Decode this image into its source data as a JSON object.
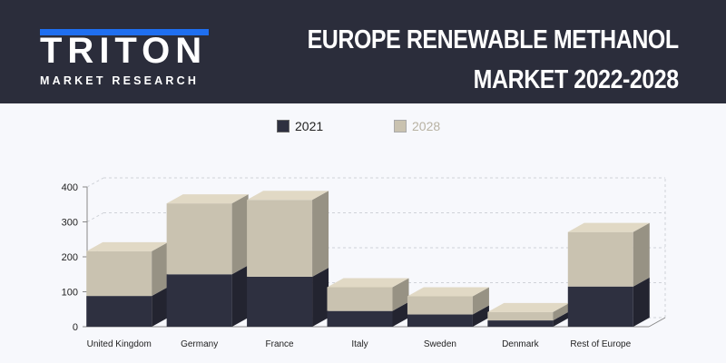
{
  "header": {
    "brand": "TRITON",
    "brand_sub": "MARKET RESEARCH",
    "title_line1": "EUROPE RENEWABLE METHANOL",
    "title_line2": "MARKET  2022-2028"
  },
  "chart_data": {
    "type": "bar",
    "stacked": true,
    "categories": [
      "United Kingdom",
      "Germany",
      "France",
      "Italy",
      "Sweden",
      "Denmark",
      "Rest of Europe"
    ],
    "series": [
      {
        "name": "2021",
        "values": [
          88,
          150,
          143,
          45,
          35,
          18,
          115
        ],
        "color": "#2e3040"
      },
      {
        "name": "2028",
        "values": [
          128,
          203,
          220,
          68,
          52,
          24,
          156
        ],
        "color": "#c9c2b0"
      }
    ],
    "ylim": [
      0,
      400
    ],
    "yticks": [
      0,
      100,
      200,
      300,
      400
    ],
    "grid": true,
    "legend_position": "top-center"
  }
}
